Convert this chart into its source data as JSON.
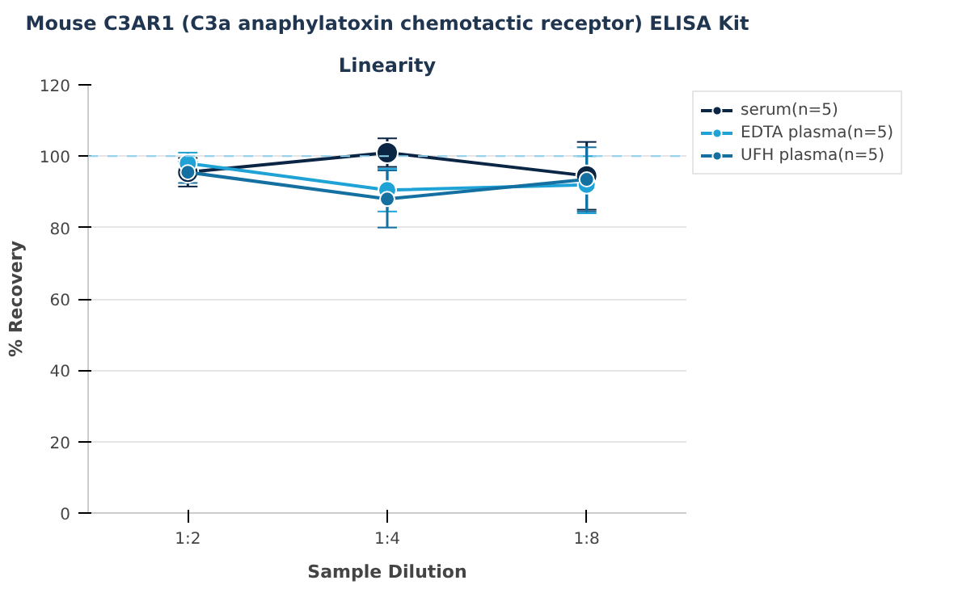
{
  "chart_data": {
    "type": "line",
    "title": "Mouse C3AR1 (C3a anaphylatoxin chemotactic receptor) ELISA Kit",
    "subtitle": "Linearity",
    "xlabel": "Sample Dilution",
    "ylabel": "% Recovery",
    "categories": [
      "1:2",
      "1:4",
      "1:8"
    ],
    "series": [
      {
        "name": "serum(n=5)",
        "color": "#0b2545",
        "values": [
          95.5,
          101,
          94.5
        ],
        "errors": [
          4,
          4,
          9.5
        ]
      },
      {
        "name": "EDTA plasma(n=5)",
        "color": "#1fa3d6",
        "values": [
          98,
          90.5,
          92
        ],
        "errors": [
          3,
          6,
          8
        ]
      },
      {
        "name": "UFH plasma(n=5)",
        "color": "#1470a0",
        "values": [
          95.5,
          88,
          93.5
        ],
        "errors": [
          3,
          8,
          9
        ]
      }
    ],
    "ylim": [
      0,
      120
    ],
    "yticks": [
      0,
      20,
      40,
      60,
      80,
      100,
      120
    ],
    "ref_lines": [
      {
        "axis": "y",
        "value": 100,
        "color": "#8fd0ea",
        "line_style": "dashed"
      }
    ],
    "grid": "y",
    "legend": "top right",
    "marker": "circle",
    "line_style": "solid"
  }
}
